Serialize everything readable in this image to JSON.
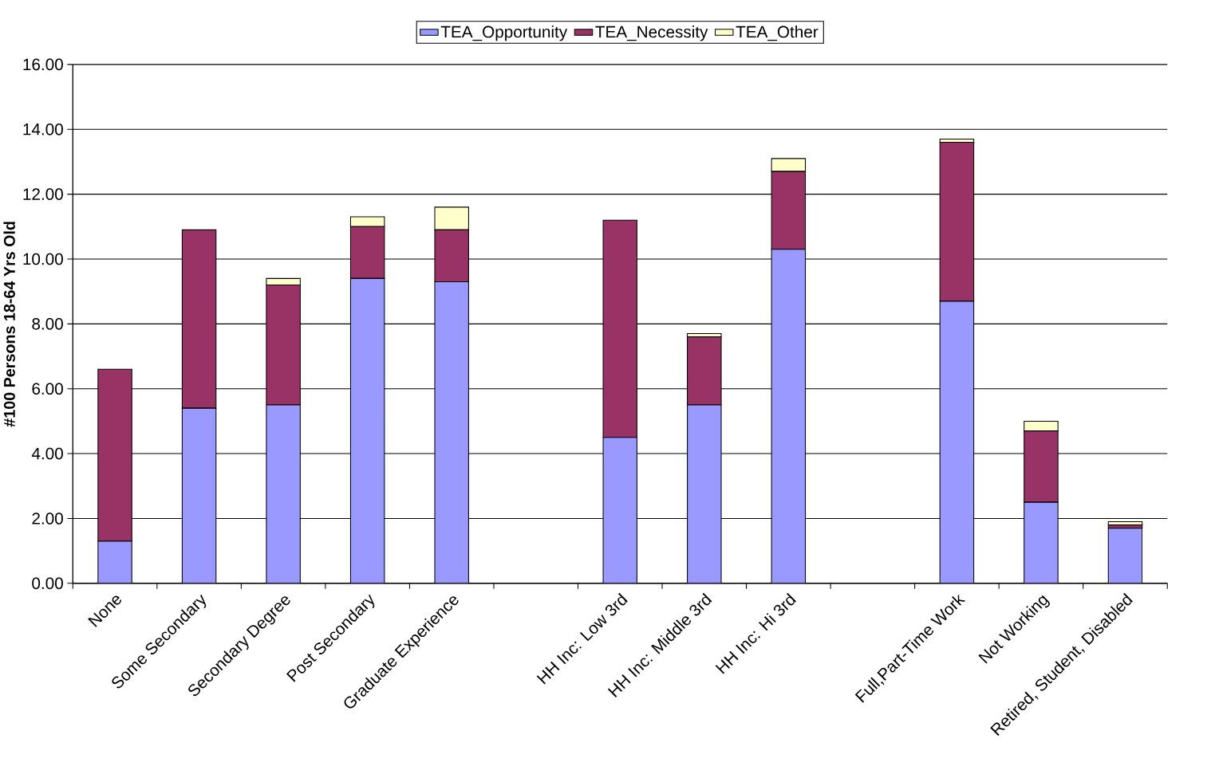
{
  "chart_data": {
    "type": "bar",
    "stacked": true,
    "ylabel": "#100 Persons 18-64 Yrs Old",
    "categories": [
      "None",
      "Some Secondary",
      "Secondary Degree",
      "Post Secondary",
      "Graduate Experience",
      null,
      "HH Inc: Low 3rd",
      "HH Inc: Middle 3rd",
      "HH Inc: Hi 3rd",
      null,
      "Full,Part-Time Work",
      "Not Working",
      "Retired, Student, Disabled"
    ],
    "series": [
      {
        "name": "TEA_Opportunity",
        "color": "#9999ff",
        "values": [
          1.3,
          5.4,
          5.5,
          9.4,
          9.3,
          null,
          4.5,
          5.5,
          10.3,
          null,
          8.7,
          2.5,
          1.7
        ]
      },
      {
        "name": "TEA_Necessity",
        "color": "#993366",
        "values": [
          5.3,
          5.5,
          3.7,
          1.6,
          1.6,
          null,
          6.7,
          2.1,
          2.4,
          null,
          4.9,
          2.2,
          0.1
        ]
      },
      {
        "name": "TEA_Other",
        "color": "#ffffcc",
        "values": [
          0,
          0,
          0.2,
          0.3,
          0.7,
          null,
          0,
          0.1,
          0.4,
          null,
          0.1,
          0.3,
          0.1
        ]
      }
    ],
    "ylim": [
      0,
      16
    ],
    "yticks": [
      {
        "value": 0,
        "label": "0.00"
      },
      {
        "value": 2,
        "label": "2.00"
      },
      {
        "value": 4,
        "label": "4.00"
      },
      {
        "value": 6,
        "label": "6.00"
      },
      {
        "value": 8,
        "label": "8.00"
      },
      {
        "value": 10,
        "label": "10.00"
      },
      {
        "value": 12,
        "label": "12.00"
      },
      {
        "value": 14,
        "label": "14.00"
      },
      {
        "value": 16,
        "label": "16.00"
      }
    ],
    "grid": "y",
    "legend": "top"
  }
}
